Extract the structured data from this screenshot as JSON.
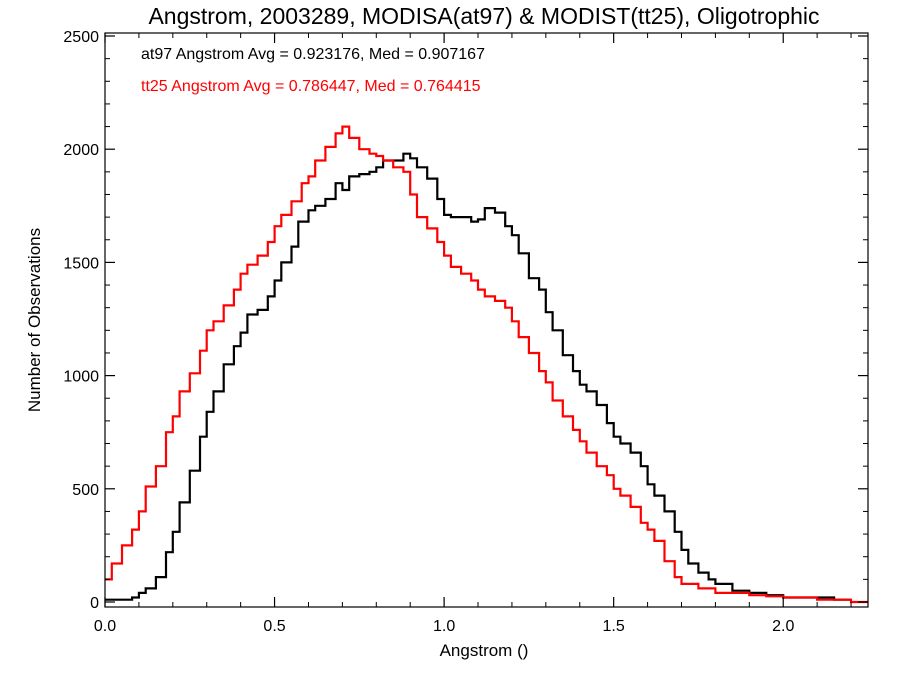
{
  "chart_data": {
    "type": "line",
    "title": "Angstrom, 2003289, MODISA(at97) & MODIST(tt25), Oligotrophic",
    "xlabel": "Angstrom ()",
    "ylabel": "Number of Observations",
    "xlim": [
      0.0,
      2.25
    ],
    "ylim": [
      0,
      2500
    ],
    "x_ticks": [
      0.0,
      0.5,
      1.0,
      1.5,
      2.0
    ],
    "x_tick_labels": [
      "0.0",
      "0.5",
      "1.0",
      "1.5",
      "2.0"
    ],
    "y_ticks": [
      0,
      500,
      1000,
      1500,
      2000,
      2500
    ],
    "y_tick_labels": [
      "0",
      "500",
      "1000",
      "1500",
      "2000",
      "2500"
    ],
    "grid": false,
    "step_style": "histogram",
    "annotations": [
      {
        "text": "at97 Angstrom Avg = 0.923176, Med = 0.907167",
        "color": "#000000"
      },
      {
        "text": "tt25 Angstrom Avg = 0.786447, Med = 0.764415",
        "color": "#ff0000"
      }
    ],
    "series": [
      {
        "color": "#000000",
        "x": [
          0.0,
          0.05,
          0.08,
          0.1,
          0.12,
          0.15,
          0.18,
          0.2,
          0.22,
          0.25,
          0.28,
          0.3,
          0.32,
          0.35,
          0.38,
          0.4,
          0.42,
          0.45,
          0.48,
          0.5,
          0.52,
          0.55,
          0.57,
          0.6,
          0.62,
          0.65,
          0.68,
          0.7,
          0.72,
          0.75,
          0.78,
          0.8,
          0.82,
          0.85,
          0.88,
          0.9,
          0.92,
          0.95,
          0.98,
          1.0,
          1.02,
          1.05,
          1.08,
          1.1,
          1.12,
          1.15,
          1.18,
          1.2,
          1.22,
          1.25,
          1.28,
          1.3,
          1.32,
          1.35,
          1.38,
          1.4,
          1.42,
          1.45,
          1.48,
          1.5,
          1.52,
          1.55,
          1.58,
          1.6,
          1.62,
          1.65,
          1.68,
          1.7,
          1.72,
          1.75,
          1.78,
          1.8,
          1.85,
          1.9,
          1.95,
          2.0,
          2.05,
          2.1,
          2.15
        ],
        "values": [
          10,
          10,
          20,
          40,
          60,
          110,
          220,
          310,
          440,
          580,
          730,
          840,
          930,
          1050,
          1130,
          1190,
          1270,
          1290,
          1350,
          1420,
          1500,
          1570,
          1680,
          1730,
          1750,
          1780,
          1850,
          1820,
          1880,
          1890,
          1900,
          1920,
          1950,
          1950,
          1980,
          1960,
          1920,
          1870,
          1780,
          1710,
          1700,
          1700,
          1680,
          1690,
          1740,
          1720,
          1660,
          1620,
          1540,
          1430,
          1380,
          1280,
          1200,
          1090,
          1020,
          960,
          930,
          870,
          790,
          730,
          700,
          660,
          600,
          520,
          470,
          400,
          310,
          230,
          170,
          130,
          100,
          80,
          50,
          40,
          30,
          20,
          20,
          20,
          10
        ]
      },
      {
        "color": "#ff0000",
        "x": [
          0.0,
          0.02,
          0.05,
          0.08,
          0.1,
          0.12,
          0.15,
          0.18,
          0.2,
          0.22,
          0.25,
          0.28,
          0.3,
          0.32,
          0.35,
          0.38,
          0.4,
          0.42,
          0.45,
          0.48,
          0.5,
          0.52,
          0.55,
          0.58,
          0.6,
          0.62,
          0.65,
          0.68,
          0.7,
          0.72,
          0.75,
          0.78,
          0.8,
          0.82,
          0.85,
          0.88,
          0.9,
          0.92,
          0.95,
          0.98,
          1.0,
          1.02,
          1.05,
          1.08,
          1.1,
          1.12,
          1.15,
          1.18,
          1.2,
          1.22,
          1.25,
          1.28,
          1.3,
          1.32,
          1.35,
          1.38,
          1.4,
          1.42,
          1.45,
          1.48,
          1.5,
          1.52,
          1.55,
          1.58,
          1.6,
          1.62,
          1.65,
          1.68,
          1.7,
          1.75,
          1.8,
          1.85,
          1.9,
          1.95,
          2.0,
          2.05,
          2.1,
          2.15,
          2.2,
          2.25
        ],
        "values": [
          100,
          170,
          250,
          320,
          400,
          510,
          600,
          750,
          820,
          930,
          1010,
          1110,
          1200,
          1240,
          1310,
          1380,
          1450,
          1490,
          1530,
          1590,
          1660,
          1710,
          1770,
          1850,
          1880,
          1950,
          2010,
          2070,
          2100,
          2050,
          2000,
          1980,
          1970,
          1950,
          1920,
          1900,
          1800,
          1700,
          1650,
          1590,
          1530,
          1480,
          1450,
          1420,
          1380,
          1350,
          1330,
          1300,
          1240,
          1170,
          1100,
          1020,
          970,
          890,
          820,
          760,
          710,
          660,
          600,
          560,
          500,
          470,
          420,
          350,
          320,
          270,
          180,
          110,
          80,
          60,
          40,
          40,
          30,
          25,
          20,
          20,
          10,
          10,
          0,
          0
        ]
      }
    ]
  }
}
